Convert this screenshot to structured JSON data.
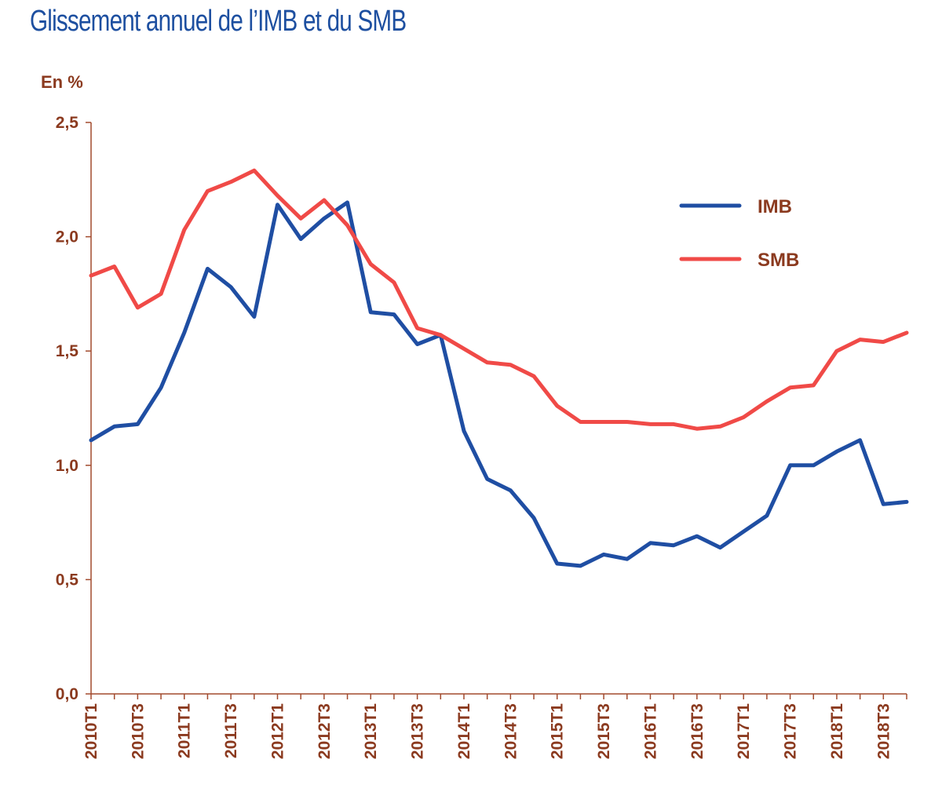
{
  "chart_data": {
    "type": "line",
    "title": "Glissement annuel de l’IMB et du SMB",
    "ylabel": "En %",
    "xlabel": "",
    "ylim": [
      0,
      2.5
    ],
    "yticks": [
      "0,0",
      "0,5",
      "1,0",
      "1,5",
      "2,0",
      "2,5"
    ],
    "x": [
      "2010T1",
      "2010T2",
      "2010T3",
      "2010T4",
      "2011T1",
      "2011T2",
      "2011T3",
      "2011T4",
      "2012T1",
      "2012T2",
      "2012T3",
      "2012T4",
      "2013T1",
      "2013T2",
      "2013T3",
      "2013T4",
      "2014T1",
      "2014T2",
      "2014T3",
      "2014T4",
      "2015T1",
      "2015T2",
      "2015T3",
      "2015T4",
      "2016T1",
      "2016T2",
      "2016T3",
      "2016T4",
      "2017T1",
      "2017T2",
      "2017T3",
      "2017T4",
      "2018T1",
      "2018T2",
      "2018T3",
      "2018T4"
    ],
    "xtick_labels": [
      "2010T1",
      "2010T3",
      "2011T1",
      "2011T3",
      "2012T1",
      "2012T3",
      "2013T1",
      "2013T3",
      "2014T1",
      "2014T3",
      "2015T1",
      "2015T3",
      "2016T1",
      "2016T3",
      "2017T1",
      "2017T3",
      "2018T1",
      "2018T3"
    ],
    "series": [
      {
        "name": "IMB",
        "color": "#1f4ea3",
        "values": [
          1.11,
          1.17,
          1.18,
          1.34,
          1.58,
          1.86,
          1.78,
          1.65,
          2.14,
          1.99,
          2.08,
          2.15,
          1.67,
          1.66,
          1.53,
          1.57,
          1.15,
          0.94,
          0.89,
          0.77,
          0.57,
          0.56,
          0.61,
          0.59,
          0.66,
          0.65,
          0.69,
          0.64,
          0.71,
          0.78,
          1.0,
          1.0,
          1.06,
          1.11,
          0.83,
          0.84
        ]
      },
      {
        "name": "SMB",
        "color": "#f04a47",
        "values": [
          1.83,
          1.87,
          1.69,
          1.75,
          2.03,
          2.2,
          2.24,
          2.29,
          2.18,
          2.08,
          2.16,
          2.05,
          1.88,
          1.8,
          1.6,
          1.57,
          1.51,
          1.45,
          1.44,
          1.39,
          1.26,
          1.19,
          1.19,
          1.19,
          1.18,
          1.18,
          1.16,
          1.17,
          1.21,
          1.28,
          1.34,
          1.35,
          1.5,
          1.55,
          1.54,
          1.58
        ]
      }
    ],
    "legend_position": "top-right",
    "grid": false
  }
}
